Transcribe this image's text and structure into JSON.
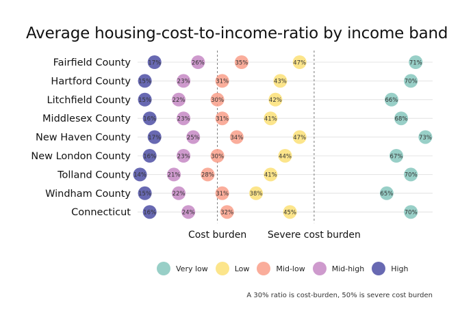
{
  "chart_data": {
    "type": "scatter",
    "title": "Average housing-cost-to-income-ratio by income band",
    "xlabel": "",
    "ylabel": "",
    "xlim": [
      0.135,
      0.745
    ],
    "grid": true,
    "legend_position": "bottom",
    "categories": [
      "Fairfield County",
      "Hartford County",
      "Litchfield County",
      "Middlesex County",
      "New Haven County",
      "New London County",
      "Tolland County",
      "Windham County",
      "Connecticut"
    ],
    "series": [
      {
        "name": "Very low",
        "color": "#86c7bd",
        "values": [
          0.71,
          0.7,
          0.66,
          0.68,
          0.73,
          0.67,
          0.7,
          0.65,
          0.7
        ],
        "labels": [
          "71%",
          "70%",
          "66%",
          "68%",
          "73%",
          "67%",
          "70%",
          "65%",
          "70%"
        ]
      },
      {
        "name": "Low",
        "color": "#fce177",
        "values": [
          0.47,
          0.43,
          0.42,
          0.41,
          0.47,
          0.44,
          0.41,
          0.38,
          0.45
        ],
        "labels": [
          "47%",
          "43%",
          "42%",
          "41%",
          "47%",
          "44%",
          "41%",
          "38%",
          "45%"
        ]
      },
      {
        "name": "Mid-low",
        "color": "#f99f8a",
        "values": [
          0.35,
          0.31,
          0.3,
          0.31,
          0.34,
          0.3,
          0.28,
          0.31,
          0.32
        ],
        "labels": [
          "35%",
          "31%",
          "30%",
          "31%",
          "34%",
          "30%",
          "28%",
          "31%",
          "32%"
        ]
      },
      {
        "name": "Mid-high",
        "color": "#c588c4",
        "values": [
          0.26,
          0.23,
          0.22,
          0.23,
          0.25,
          0.23,
          0.21,
          0.22,
          0.24
        ],
        "labels": [
          "26%",
          "23%",
          "22%",
          "23%",
          "25%",
          "23%",
          "21%",
          "22%",
          "24%"
        ]
      },
      {
        "name": "High",
        "color": "#4e4fa4",
        "values": [
          0.17,
          0.15,
          0.15,
          0.16,
          0.17,
          0.16,
          0.14,
          0.15,
          0.16
        ],
        "labels": [
          "17%",
          "15%",
          "15%",
          "16%",
          "17%",
          "16%",
          "14%",
          "15%",
          "16%"
        ]
      }
    ],
    "reference_lines": [
      {
        "value": 0.3,
        "label": "Cost burden"
      },
      {
        "value": 0.5,
        "label": "Severe cost burden"
      }
    ],
    "caption": "A 30% ratio is cost-burden, 50% is severe cost burden"
  }
}
